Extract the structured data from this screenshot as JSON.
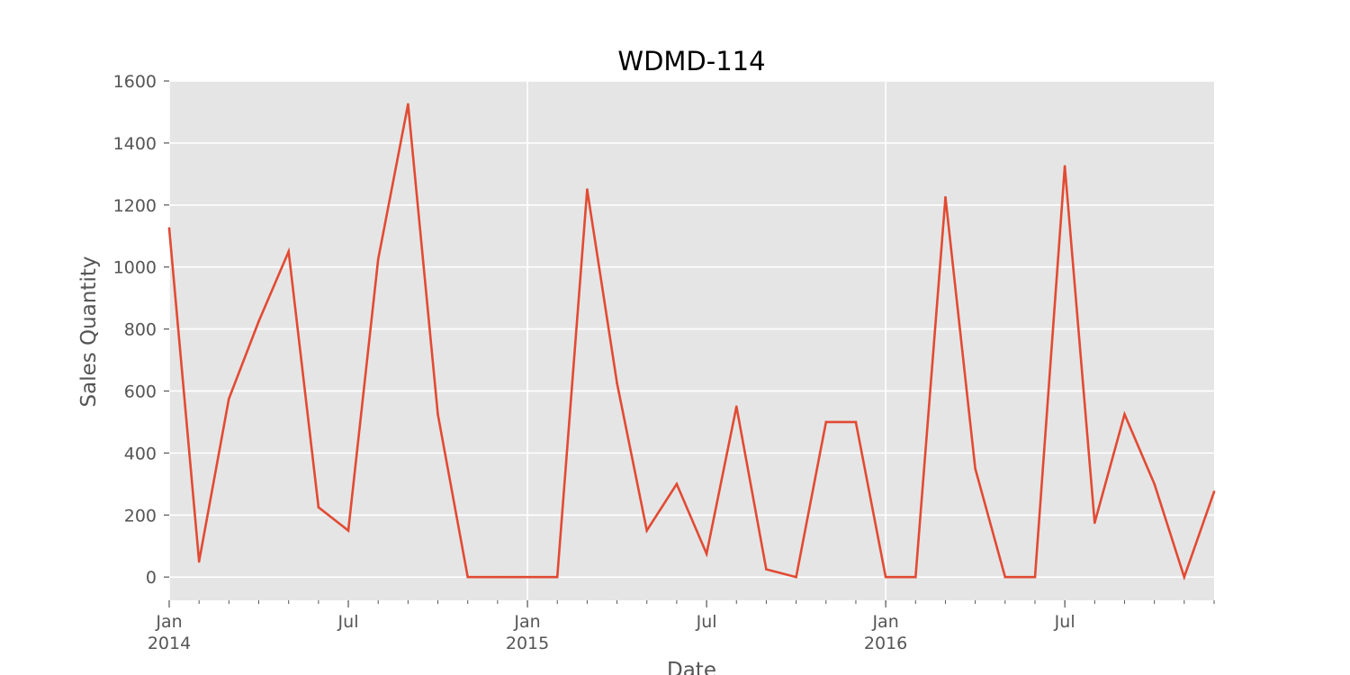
{
  "chart_data": {
    "type": "line",
    "title": "WDMD-114",
    "xlabel": "Date",
    "ylabel": "Sales Quantity",
    "ylim": [
      -75,
      1600
    ],
    "xlim": [
      "2014-01",
      "2016-12"
    ],
    "grid": true,
    "y_ticks": [
      0,
      200,
      400,
      600,
      800,
      1000,
      1200,
      1400,
      1600
    ],
    "x_major_ticks": [
      {
        "date": "2014-01",
        "label": "Jan",
        "sublabel": "2014"
      },
      {
        "date": "2014-07",
        "label": "Jul",
        "sublabel": ""
      },
      {
        "date": "2015-01",
        "label": "Jan",
        "sublabel": "2015"
      },
      {
        "date": "2015-07",
        "label": "Jul",
        "sublabel": ""
      },
      {
        "date": "2016-01",
        "label": "Jan",
        "sublabel": "2016"
      },
      {
        "date": "2016-07",
        "label": "Jul",
        "sublabel": ""
      }
    ],
    "series": [
      {
        "color": "#e24a33",
        "x": [
          "2014-01",
          "2014-02",
          "2014-03",
          "2014-04",
          "2014-05",
          "2014-06",
          "2014-07",
          "2014-08",
          "2014-09",
          "2014-10",
          "2014-11",
          "2014-12",
          "2015-01",
          "2015-02",
          "2015-03",
          "2015-04",
          "2015-05",
          "2015-06",
          "2015-07",
          "2015-08",
          "2015-09",
          "2015-10",
          "2015-11",
          "2015-12",
          "2016-01",
          "2016-02",
          "2016-03",
          "2016-04",
          "2016-05",
          "2016-06",
          "2016-07",
          "2016-08",
          "2016-09",
          "2016-10",
          "2016-11",
          "2016-12"
        ],
        "values": [
          1125,
          50,
          575,
          825,
          1050,
          225,
          150,
          1025,
          1525,
          525,
          0,
          0,
          0,
          0,
          1250,
          625,
          150,
          300,
          75,
          550,
          25,
          0,
          500,
          500,
          0,
          0,
          1225,
          350,
          0,
          0,
          1325,
          175,
          525,
          300,
          0,
          275
        ]
      }
    ]
  },
  "colors": {
    "plot_background": "#e5e5e5",
    "grid": "#ffffff",
    "line": "#e24a33",
    "tick_text": "#555555",
    "label_text": "#555555",
    "title_text": "#000000"
  }
}
